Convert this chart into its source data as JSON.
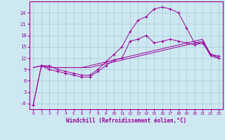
{
  "xlabel": "Windchill (Refroidissement éolien,°C)",
  "background_color": "#cde8f0",
  "grid_color": "#aac8d8",
  "line_color": "#990099",
  "hours": [
    0,
    1,
    2,
    3,
    4,
    5,
    6,
    7,
    8,
    9,
    10,
    11,
    12,
    13,
    14,
    15,
    16,
    17,
    18,
    19,
    20,
    21,
    22,
    23
  ],
  "temp": [
    -0.3,
    10,
    10,
    9,
    8.5,
    8,
    7.5,
    7.5,
    9,
    11,
    13,
    15,
    19,
    22,
    23,
    25,
    25.5,
    25,
    24,
    20,
    16,
    16,
    13,
    12.5
  ],
  "windchill": [
    -0.3,
    10,
    9,
    8.5,
    8,
    7.5,
    7,
    7,
    8.5,
    10,
    11.5,
    12,
    16.5,
    17,
    18,
    16,
    16.5,
    17,
    16.5,
    16,
    15.5,
    16,
    13,
    12
  ],
  "line2": [
    9.5,
    10,
    9.5,
    9.5,
    9.5,
    9.5,
    9.5,
    9.5,
    10,
    10.5,
    11,
    11.5,
    12,
    12.5,
    13,
    13.5,
    14,
    14.5,
    15,
    15.5,
    16,
    16.5,
    12.5,
    12
  ],
  "line3": [
    9.5,
    10,
    9.5,
    9.5,
    9.5,
    9.5,
    9.5,
    10,
    10.5,
    11,
    11.5,
    12,
    12.5,
    13,
    13.5,
    14,
    14.5,
    15,
    15.5,
    16,
    16.5,
    17,
    13,
    12.5
  ],
  "ylim": [
    -1.5,
    27
  ],
  "xlim": [
    -0.5,
    23.5
  ],
  "yticks": [
    0,
    3,
    6,
    9,
    12,
    15,
    18,
    21,
    24
  ],
  "ytick_labels": [
    "-0",
    "3",
    "6",
    "9",
    "12",
    "15",
    "18",
    "21",
    "24"
  ],
  "xticks": [
    0,
    1,
    2,
    3,
    4,
    5,
    6,
    7,
    8,
    9,
    10,
    11,
    12,
    13,
    14,
    15,
    16,
    17,
    18,
    19,
    20,
    21,
    22,
    23
  ]
}
